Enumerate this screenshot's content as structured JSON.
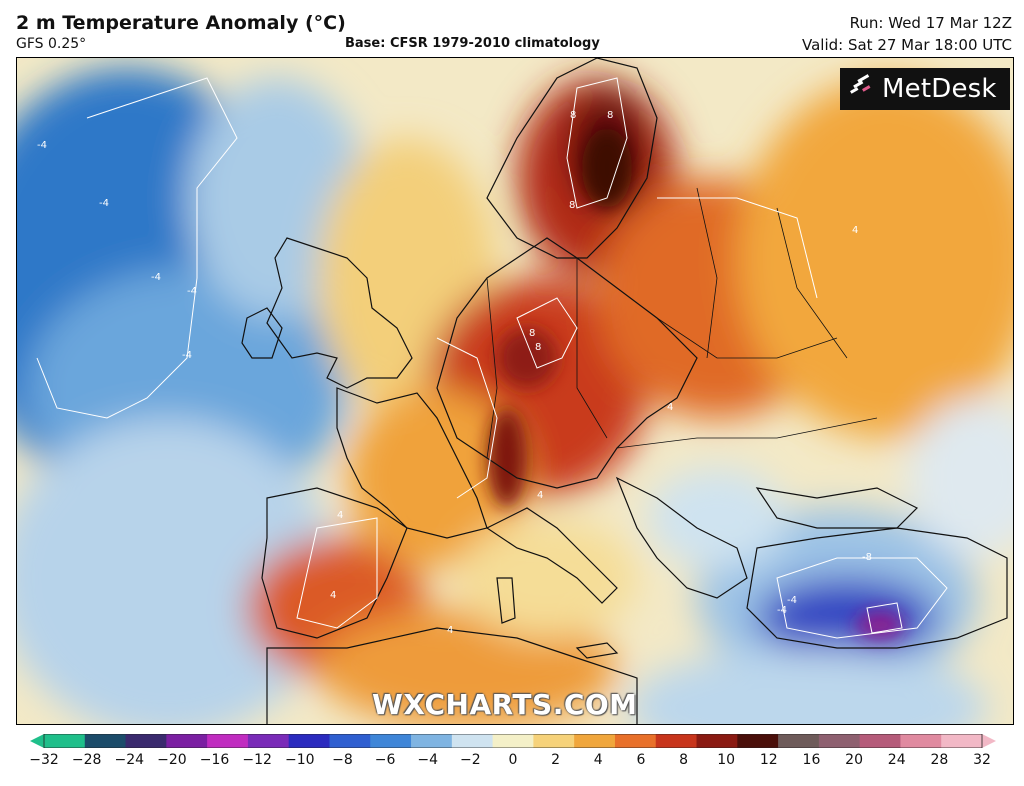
{
  "header": {
    "title": "2 m Temperature Anomaly (°C)",
    "model": "GFS 0.25°",
    "base": "Base: CFSR 1979-2010 climatology",
    "run": "Run: Wed 17 Mar 12Z",
    "valid": "Valid: Sat 27 Mar 18:00 UTC"
  },
  "logo": {
    "brand": "MetDesk",
    "icon": "metdesk-logo-icon"
  },
  "watermark": "WXCHARTS.COM",
  "contour_labels": [
    "-4",
    "-4",
    "-4",
    "-4",
    "-4",
    "8",
    "8",
    "8",
    "8",
    "4",
    "4",
    "4",
    "-4",
    "-4",
    "-8",
    "8",
    "4",
    "4",
    "4"
  ],
  "colorbar": {
    "ticks": [
      "−32",
      "−28",
      "−24",
      "−20",
      "−16",
      "−12",
      "−10",
      "−8",
      "−6",
      "−4",
      "−2",
      "0",
      "2",
      "4",
      "6",
      "8",
      "10",
      "12",
      "16",
      "20",
      "24",
      "28",
      "32"
    ],
    "colors": [
      "#1fbf8a",
      "#1c4c6a",
      "#3a2a6e",
      "#7b1fa2",
      "#c02cc0",
      "#7a2bb8",
      "#2b2bbf",
      "#2f5fd0",
      "#3f86d8",
      "#7fb4e2",
      "#cfe3f0",
      "#f4f0c8",
      "#f6d27a",
      "#f0a63c",
      "#e8702a",
      "#c8351c",
      "#8a1a12",
      "#4a0f0a",
      "#6e5b5a",
      "#8e6070",
      "#b55b7a",
      "#e08aa0",
      "#f2b8c6"
    ]
  }
}
